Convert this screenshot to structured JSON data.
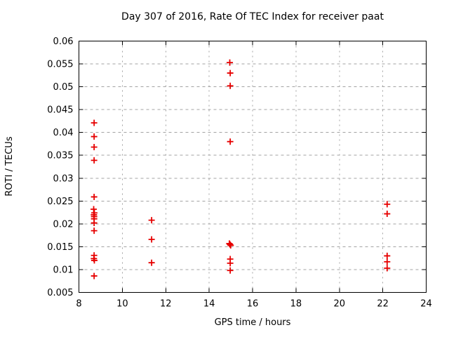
{
  "chart_data": {
    "type": "scatter",
    "title": "Day 307 of 2016, Rate Of TEC Index for receiver paat",
    "xlabel": "GPS time / hours",
    "ylabel": "ROTI / TECUs",
    "xlim": [
      8,
      24
    ],
    "ylim": [
      0.005,
      0.06
    ],
    "xticks": [
      8,
      10,
      12,
      14,
      16,
      18,
      20,
      22,
      24
    ],
    "yticks": [
      0.005,
      0.01,
      0.015,
      0.02,
      0.025,
      0.03,
      0.035,
      0.04,
      0.045,
      0.05,
      0.055,
      0.06
    ],
    "grid": true,
    "legend": "none",
    "marker": "plus",
    "colors": {
      "marker": "#e60000",
      "grid": "#a3a3a3",
      "axis": "#000000",
      "text": "#000000",
      "background": "#ffffff"
    },
    "series": [
      {
        "name": "ROTI",
        "points": [
          [
            8.7,
            0.0421
          ],
          [
            8.7,
            0.0391
          ],
          [
            8.7,
            0.0368
          ],
          [
            8.7,
            0.0339
          ],
          [
            8.7,
            0.0259
          ],
          [
            8.68,
            0.0232
          ],
          [
            8.71,
            0.0224
          ],
          [
            8.69,
            0.022
          ],
          [
            8.7,
            0.0216
          ],
          [
            8.7,
            0.0211
          ],
          [
            8.7,
            0.0202
          ],
          [
            8.7,
            0.0185
          ],
          [
            8.7,
            0.0131
          ],
          [
            8.69,
            0.0124
          ],
          [
            8.71,
            0.012
          ],
          [
            8.7,
            0.0086
          ],
          [
            11.35,
            0.0208
          ],
          [
            11.35,
            0.0166
          ],
          [
            11.35,
            0.0115
          ],
          [
            14.95,
            0.0553
          ],
          [
            14.97,
            0.053
          ],
          [
            14.97,
            0.0502
          ],
          [
            14.97,
            0.038
          ],
          [
            14.93,
            0.0157
          ],
          [
            14.96,
            0.0155
          ],
          [
            14.99,
            0.0153
          ],
          [
            14.97,
            0.0123
          ],
          [
            14.97,
            0.0114
          ],
          [
            14.97,
            0.0098
          ],
          [
            22.2,
            0.0243
          ],
          [
            22.2,
            0.0222
          ],
          [
            22.2,
            0.013
          ],
          [
            22.2,
            0.0117
          ],
          [
            22.2,
            0.0103
          ]
        ]
      }
    ]
  }
}
